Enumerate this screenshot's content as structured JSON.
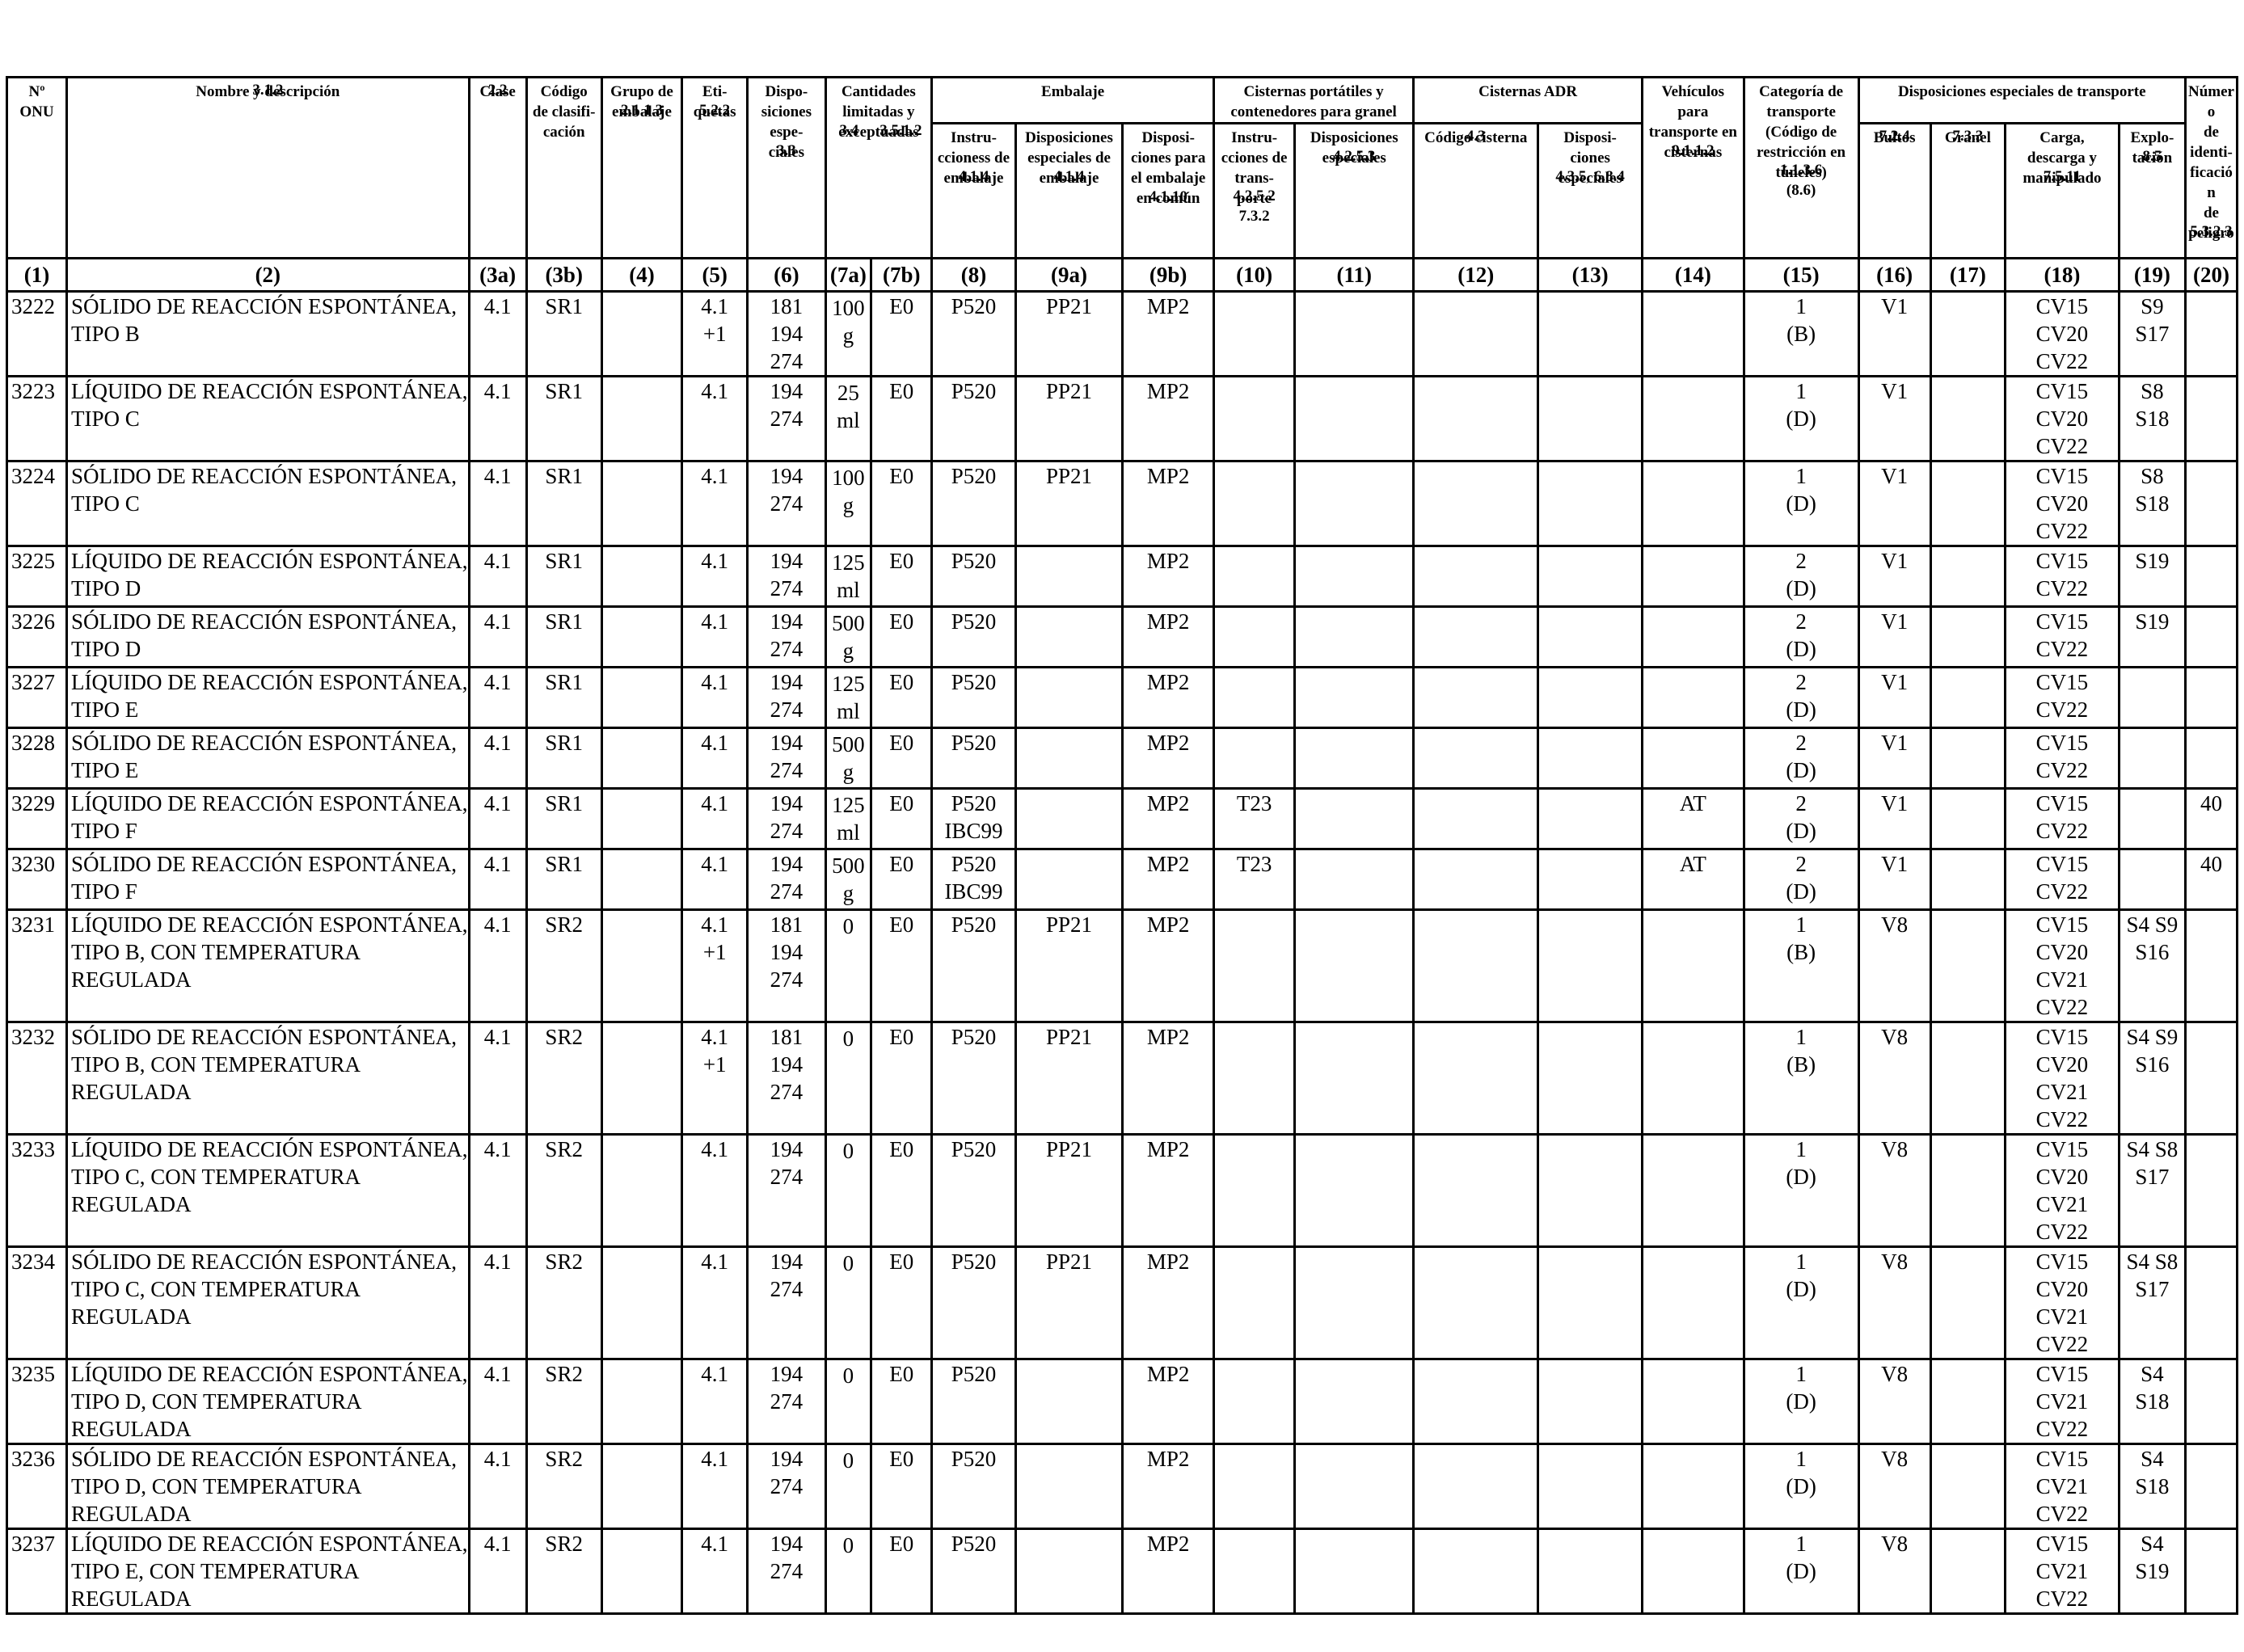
{
  "headers": {
    "un": {
      "label": "Nº\nONU",
      "ref": ""
    },
    "name": {
      "label": "Nombre y descripción",
      "ref": "3.1.2"
    },
    "class": {
      "label": "Clase",
      "ref": "2.2"
    },
    "code": {
      "label": "Código\nde clasifi-\ncación",
      "ref": ""
    },
    "group": {
      "label": "Grupo de\nembalaje",
      "ref": "2.1.1.3"
    },
    "labels": {
      "label": "Eti-\nquetas",
      "ref": "5.2.2"
    },
    "special": {
      "label": "Dispo-\nsiciones\nespe-\nciales",
      "ref": "3.3"
    },
    "quantities": {
      "label": "Cantidades\nlimitadas y\nexceptuadas",
      "ref_a": "3.4",
      "ref_b": "3.5.1.2"
    },
    "packaging": {
      "label": "Embalaje"
    },
    "pack_instr": {
      "label": "Instru-\nccioness de\nembalaje",
      "ref": "4.1.4"
    },
    "pack_special": {
      "label": "Disposiciones\nespeciales de\nembalaje",
      "ref": "4.1.4"
    },
    "pack_mixed": {
      "label": "Disposi-\nciones para\nel embalaje\nen común",
      "ref": "4.1.10"
    },
    "portable": {
      "label": "Cisternas portátiles y\ncontenedores para granel"
    },
    "portable_instr": {
      "label": "Instru-\ncciones de\ntrans-\nporte",
      "ref": "4.2.5.2\n7.3.2"
    },
    "portable_special": {
      "label": "Disposiciones\nespeciales",
      "ref": "4.2.5.3"
    },
    "adr": {
      "label": "Cisternas ADR"
    },
    "adr_code": {
      "label": "Código cisterna",
      "ref": "4.3"
    },
    "adr_special": {
      "label": "Disposi-\nciones\nespeciales",
      "ref": "4.3.5, 6.8.4"
    },
    "vehicles": {
      "label": "Vehículos\npara\ntransporte en\ncisternas",
      "ref": "9.1.1.2"
    },
    "category": {
      "label": "Categoría de\ntransporte\n(Código de\nrestricción en\ntúneles)",
      "ref": "1.1.3.6\n(8.6)"
    },
    "transport": {
      "label": "Disposiciones especiales de transporte"
    },
    "packages": {
      "label": "Bultos",
      "ref": "7.2.4"
    },
    "bulk": {
      "label": "Granel",
      "ref": "7.3.3"
    },
    "loading": {
      "label": "Carga,\ndescarga y\nmanipulado",
      "ref": "7.5.11"
    },
    "operation": {
      "label": "Explo-\ntación",
      "ref": "8.5"
    },
    "hazard": {
      "label": "Número\nde identi-\nficación\nde peligro",
      "ref": "5.3.2.3"
    }
  },
  "column_numbers": [
    "(1)",
    "(2)",
    "(3a)",
    "(3b)",
    "(4)",
    "(5)",
    "(6)",
    "(7a)",
    "(7b)",
    "(8)",
    "(9a)",
    "(9b)",
    "(10)",
    "(11)",
    "(12)",
    "(13)",
    "(14)",
    "(15)",
    "(16)",
    "(17)",
    "(18)",
    "(19)",
    "(20)"
  ],
  "rows": [
    {
      "un": "3222",
      "name": "SÓLIDO DE REACCIÓN ESPONTÁNEA,\nTIPO B",
      "c3a": "4.1",
      "c3b": "SR1",
      "c4": "",
      "c5": "4.1\n+1",
      "c6": "181\n194\n274",
      "c7a": "100\ng",
      "c7b": "E0",
      "c8": "P520",
      "c9a": "PP21",
      "c9b": "MP2",
      "c10": "",
      "c11": "",
      "c12": "",
      "c13": "",
      "c14": "",
      "c15": "1\n(B)",
      "c16": "V1",
      "c17": "",
      "c18": "CV15\nCV20\nCV22",
      "c19": "S9\nS17",
      "c20": ""
    },
    {
      "un": "3223",
      "name": "LÍQUIDO DE REACCIÓN ESPONTÁNEA,\nTIPO C",
      "c3a": "4.1",
      "c3b": "SR1",
      "c4": "",
      "c5": "4.1",
      "c6": "194\n274",
      "c7a": "25\nml",
      "c7b": "E0",
      "c8": "P520",
      "c9a": "PP21",
      "c9b": "MP2",
      "c10": "",
      "c11": "",
      "c12": "",
      "c13": "",
      "c14": "",
      "c15": "1\n(D)",
      "c16": "V1",
      "c17": "",
      "c18": "CV15\nCV20\nCV22",
      "c19": "S8\nS18",
      "c20": ""
    },
    {
      "un": "3224",
      "name": "SÓLIDO DE REACCIÓN ESPONTÁNEA,\nTIPO C",
      "c3a": "4.1",
      "c3b": "SR1",
      "c4": "",
      "c5": "4.1",
      "c6": "194\n274",
      "c7a": "100\ng",
      "c7b": "E0",
      "c8": "P520",
      "c9a": "PP21",
      "c9b": "MP2",
      "c10": "",
      "c11": "",
      "c12": "",
      "c13": "",
      "c14": "",
      "c15": "1\n(D)",
      "c16": "V1",
      "c17": "",
      "c18": "CV15\nCV20\nCV22",
      "c19": "S8\nS18",
      "c20": ""
    },
    {
      "un": "3225",
      "name": "LÍQUIDO DE REACCIÓN ESPONTÁNEA,\nTIPO D",
      "c3a": "4.1",
      "c3b": "SR1",
      "c4": "",
      "c5": "4.1",
      "c6": "194\n274",
      "c7a": "125\nml",
      "c7b": "E0",
      "c8": "P520",
      "c9a": "",
      "c9b": "MP2",
      "c10": "",
      "c11": "",
      "c12": "",
      "c13": "",
      "c14": "",
      "c15": "2\n(D)",
      "c16": "V1",
      "c17": "",
      "c18": "CV15\nCV22",
      "c19": "S19",
      "c20": ""
    },
    {
      "un": "3226",
      "name": "SÓLIDO DE REACCIÓN ESPONTÁNEA,\nTIPO D",
      "c3a": "4.1",
      "c3b": "SR1",
      "c4": "",
      "c5": "4.1",
      "c6": "194\n274",
      "c7a": "500\ng",
      "c7b": "E0",
      "c8": "P520",
      "c9a": "",
      "c9b": "MP2",
      "c10": "",
      "c11": "",
      "c12": "",
      "c13": "",
      "c14": "",
      "c15": "2\n(D)",
      "c16": "V1",
      "c17": "",
      "c18": "CV15\nCV22",
      "c19": "S19",
      "c20": ""
    },
    {
      "un": "3227",
      "name": "LÍQUIDO DE REACCIÓN ESPONTÁNEA,\nTIPO E",
      "c3a": "4.1",
      "c3b": "SR1",
      "c4": "",
      "c5": "4.1",
      "c6": "194\n274",
      "c7a": "125\nml",
      "c7b": "E0",
      "c8": "P520",
      "c9a": "",
      "c9b": "MP2",
      "c10": "",
      "c11": "",
      "c12": "",
      "c13": "",
      "c14": "",
      "c15": "2\n(D)",
      "c16": "V1",
      "c17": "",
      "c18": "CV15\nCV22",
      "c19": "",
      "c20": ""
    },
    {
      "un": "3228",
      "name": "SÓLIDO DE REACCIÓN ESPONTÁNEA,\nTIPO E",
      "c3a": "4.1",
      "c3b": "SR1",
      "c4": "",
      "c5": "4.1",
      "c6": "194\n274",
      "c7a": "500\ng",
      "c7b": "E0",
      "c8": "P520",
      "c9a": "",
      "c9b": "MP2",
      "c10": "",
      "c11": "",
      "c12": "",
      "c13": "",
      "c14": "",
      "c15": "2\n(D)",
      "c16": "V1",
      "c17": "",
      "c18": "CV15\nCV22",
      "c19": "",
      "c20": ""
    },
    {
      "un": "3229",
      "name": "LÍQUIDO DE REACCIÓN ESPONTÁNEA,\nTIPO F",
      "c3a": "4.1",
      "c3b": "SR1",
      "c4": "",
      "c5": "4.1",
      "c6": "194\n274",
      "c7a": "125\nml",
      "c7b": "E0",
      "c8": "P520\nIBC99",
      "c9a": "",
      "c9b": "MP2",
      "c10": "T23",
      "c11": "",
      "c12": "",
      "c13": "",
      "c14": "AT",
      "c15": "2\n(D)",
      "c16": "V1",
      "c17": "",
      "c18": "CV15\nCV22",
      "c19": "",
      "c20": "40"
    },
    {
      "un": "3230",
      "name": "SÓLIDO DE REACCIÓN ESPONTÁNEA,\nTIPO F",
      "c3a": "4.1",
      "c3b": "SR1",
      "c4": "",
      "c5": "4.1",
      "c6": "194\n274",
      "c7a": "500\ng",
      "c7b": "E0",
      "c8": "P520\nIBC99",
      "c9a": "",
      "c9b": "MP2",
      "c10": "T23",
      "c11": "",
      "c12": "",
      "c13": "",
      "c14": "AT",
      "c15": "2\n(D)",
      "c16": "V1",
      "c17": "",
      "c18": "CV15\nCV22",
      "c19": "",
      "c20": "40"
    },
    {
      "un": "3231",
      "name": "LÍQUIDO DE REACCIÓN ESPONTÁNEA,\nTIPO B, CON TEMPERATURA\nREGULADA",
      "c3a": "4.1",
      "c3b": "SR2",
      "c4": "",
      "c5": "4.1\n+1",
      "c6": "181\n194\n274",
      "c7a": "0",
      "c7b": "E0",
      "c8": "P520",
      "c9a": "PP21",
      "c9b": "MP2",
      "c10": "",
      "c11": "",
      "c12": "",
      "c13": "",
      "c14": "",
      "c15": "1\n(B)",
      "c16": "V8",
      "c17": "",
      "c18": "CV15\nCV20\nCV21\nCV22",
      "c19": "S4 S9\nS16",
      "c20": ""
    },
    {
      "un": "3232",
      "name": "SÓLIDO DE REACCIÓN ESPONTÁNEA,\nTIPO B, CON TEMPERATURA\nREGULADA",
      "c3a": "4.1",
      "c3b": "SR2",
      "c4": "",
      "c5": "4.1\n+1",
      "c6": "181\n194\n274",
      "c7a": "0",
      "c7b": "E0",
      "c8": "P520",
      "c9a": "PP21",
      "c9b": "MP2",
      "c10": "",
      "c11": "",
      "c12": "",
      "c13": "",
      "c14": "",
      "c15": "1\n(B)",
      "c16": "V8",
      "c17": "",
      "c18": "CV15\nCV20\nCV21\nCV22",
      "c19": "S4 S9\nS16",
      "c20": ""
    },
    {
      "un": "3233",
      "name": "LÍQUIDO DE REACCIÓN ESPONTÁNEA,\nTIPO C, CON TEMPERATURA\nREGULADA",
      "c3a": "4.1",
      "c3b": "SR2",
      "c4": "",
      "c5": "4.1",
      "c6": "194\n274",
      "c7a": "0",
      "c7b": "E0",
      "c8": "P520",
      "c9a": "PP21",
      "c9b": "MP2",
      "c10": "",
      "c11": "",
      "c12": "",
      "c13": "",
      "c14": "",
      "c15": "1\n(D)",
      "c16": "V8",
      "c17": "",
      "c18": "CV15\nCV20\nCV21\nCV22",
      "c19": "S4 S8\nS17",
      "c20": ""
    },
    {
      "un": "3234",
      "name": "SÓLIDO DE REACCIÓN ESPONTÁNEA,\nTIPO C, CON TEMPERATURA\nREGULADA",
      "c3a": "4.1",
      "c3b": "SR2",
      "c4": "",
      "c5": "4.1",
      "c6": "194\n274",
      "c7a": "0",
      "c7b": "E0",
      "c8": "P520",
      "c9a": "PP21",
      "c9b": "MP2",
      "c10": "",
      "c11": "",
      "c12": "",
      "c13": "",
      "c14": "",
      "c15": "1\n(D)",
      "c16": "V8",
      "c17": "",
      "c18": "CV15\nCV20\nCV21\nCV22",
      "c19": "S4 S8\nS17",
      "c20": ""
    },
    {
      "un": "3235",
      "name": "LÍQUIDO DE REACCIÓN ESPONTÁNEA,\nTIPO D, CON TEMPERATURA\nREGULADA",
      "c3a": "4.1",
      "c3b": "SR2",
      "c4": "",
      "c5": "4.1",
      "c6": "194\n274",
      "c7a": "0",
      "c7b": "E0",
      "c8": "P520",
      "c9a": "",
      "c9b": "MP2",
      "c10": "",
      "c11": "",
      "c12": "",
      "c13": "",
      "c14": "",
      "c15": "1\n(D)",
      "c16": "V8",
      "c17": "",
      "c18": "CV15\nCV21\nCV22",
      "c19": "S4\nS18",
      "c20": ""
    },
    {
      "un": "3236",
      "name": "SÓLIDO DE REACCIÓN ESPONTÁNEA,\nTIPO D, CON TEMPERATURA\nREGULADA",
      "c3a": "4.1",
      "c3b": "SR2",
      "c4": "",
      "c5": "4.1",
      "c6": "194\n274",
      "c7a": "0",
      "c7b": "E0",
      "c8": "P520",
      "c9a": "",
      "c9b": "MP2",
      "c10": "",
      "c11": "",
      "c12": "",
      "c13": "",
      "c14": "",
      "c15": "1\n(D)",
      "c16": "V8",
      "c17": "",
      "c18": "CV15\nCV21\nCV22",
      "c19": "S4\nS18",
      "c20": ""
    },
    {
      "un": "3237",
      "name": "LÍQUIDO DE REACCIÓN ESPONTÁNEA,\nTIPO E, CON TEMPERATURA\nREGULADA",
      "c3a": "4.1",
      "c3b": "SR2",
      "c4": "",
      "c5": "4.1",
      "c6": "194\n274",
      "c7a": "0",
      "c7b": "E0",
      "c8": "P520",
      "c9a": "",
      "c9b": "MP2",
      "c10": "",
      "c11": "",
      "c12": "",
      "c13": "",
      "c14": "",
      "c15": "1\n(D)",
      "c16": "V8",
      "c17": "",
      "c18": "CV15\nCV21\nCV22",
      "c19": "S4\nS19",
      "c20": ""
    }
  ]
}
